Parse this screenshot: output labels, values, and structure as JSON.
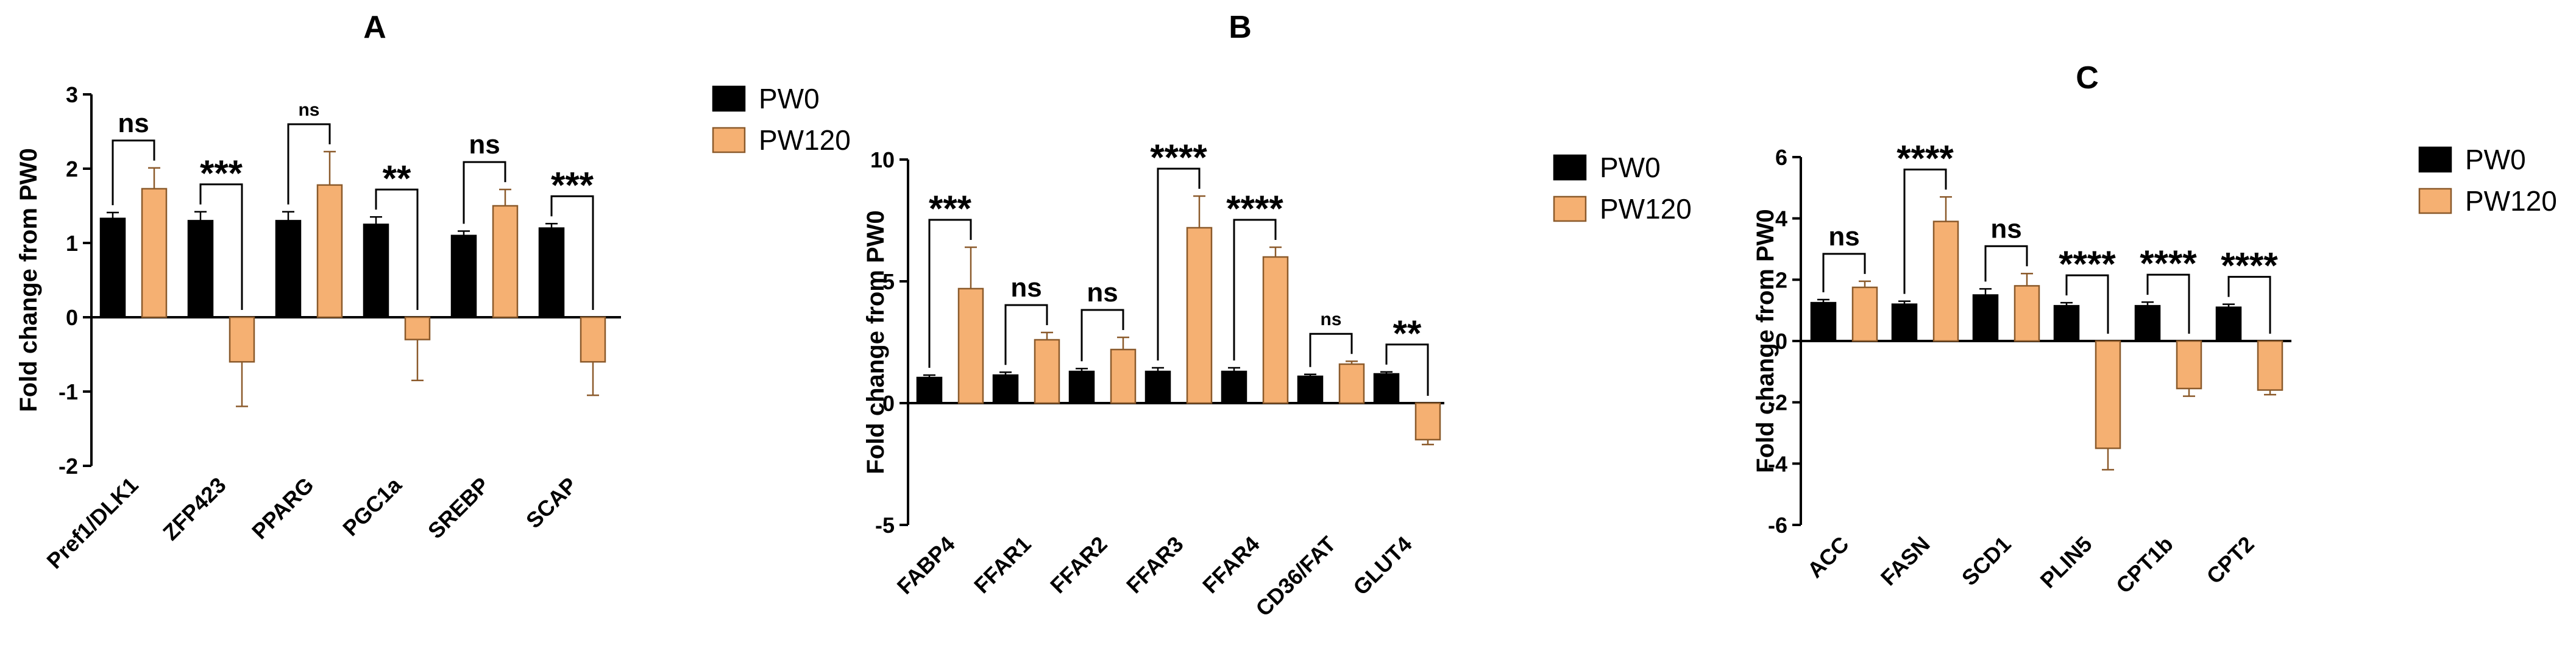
{
  "colors": {
    "pw0": "#000000",
    "pw120": "#F5B072",
    "pw120_edge": "#8B5A2B",
    "axis": "#000000"
  },
  "legend": {
    "series": [
      "PW0",
      "PW120"
    ]
  },
  "chart_data": [
    {
      "type": "bar",
      "title": "A",
      "ylabel": "Fold change from PW0",
      "xlabel": "",
      "ylim": [
        -2,
        3
      ],
      "yticks": [
        -2,
        -1,
        0,
        1,
        2,
        3
      ],
      "categories": [
        "Pref1/DLK1",
        "ZFP423",
        "PPARG",
        "PGC1a",
        "SREBP",
        "SCAP"
      ],
      "series": [
        {
          "name": "PW0",
          "values": [
            1.33,
            1.3,
            1.3,
            1.25,
            1.1,
            1.2
          ],
          "errors": [
            0.08,
            0.12,
            0.12,
            0.1,
            0.06,
            0.06
          ]
        },
        {
          "name": "PW120",
          "values": [
            1.73,
            -0.6,
            1.78,
            -0.3,
            1.5,
            -0.6
          ],
          "errors": [
            0.28,
            0.6,
            0.45,
            0.55,
            0.22,
            0.45
          ]
        }
      ],
      "significance": [
        "ns",
        "***",
        "ns",
        "**",
        "ns",
        "***"
      ]
    },
    {
      "type": "bar",
      "title": "B",
      "ylabel": "Fold change from PW0",
      "xlabel": "",
      "ylim": [
        -5,
        10
      ],
      "yticks": [
        -5,
        0,
        5,
        10
      ],
      "categories": [
        "FABP4",
        "FFAR1",
        "FFAR2",
        "FFAR3",
        "FFAR4",
        "CD36/FAT",
        "GLUT4"
      ],
      "series": [
        {
          "name": "PW0",
          "values": [
            1.05,
            1.15,
            1.3,
            1.3,
            1.3,
            1.1,
            1.2
          ],
          "errors": [
            0.1,
            0.12,
            0.12,
            0.15,
            0.15,
            0.08,
            0.08
          ]
        },
        {
          "name": "PW120",
          "values": [
            4.7,
            2.6,
            2.2,
            7.2,
            6.0,
            1.6,
            -1.5
          ],
          "errors": [
            1.7,
            0.3,
            0.5,
            1.3,
            0.4,
            0.12,
            0.2
          ]
        }
      ],
      "significance": [
        "***",
        "ns",
        "ns",
        "****",
        "****",
        "ns",
        "**"
      ]
    },
    {
      "type": "bar",
      "title": "C",
      "ylabel": "Fold change from PW0",
      "xlabel": "",
      "ylim": [
        -6,
        6
      ],
      "yticks": [
        -6,
        -4,
        -2,
        0,
        2,
        4,
        6
      ],
      "categories": [
        "ACC",
        "FASN",
        "SCD1",
        "PLIN5",
        "CPT1b",
        "CPT2"
      ],
      "series": [
        {
          "name": "PW0",
          "values": [
            1.25,
            1.2,
            1.5,
            1.15,
            1.15,
            1.1
          ],
          "errors": [
            0.1,
            0.1,
            0.2,
            0.1,
            0.12,
            0.1
          ]
        },
        {
          "name": "PW120",
          "values": [
            1.75,
            3.9,
            1.8,
            -3.5,
            -1.55,
            -1.6
          ],
          "errors": [
            0.2,
            0.8,
            0.4,
            0.7,
            0.25,
            0.15
          ]
        }
      ],
      "significance": [
        "ns",
        "****",
        "ns",
        "****",
        "****",
        "****"
      ]
    }
  ]
}
